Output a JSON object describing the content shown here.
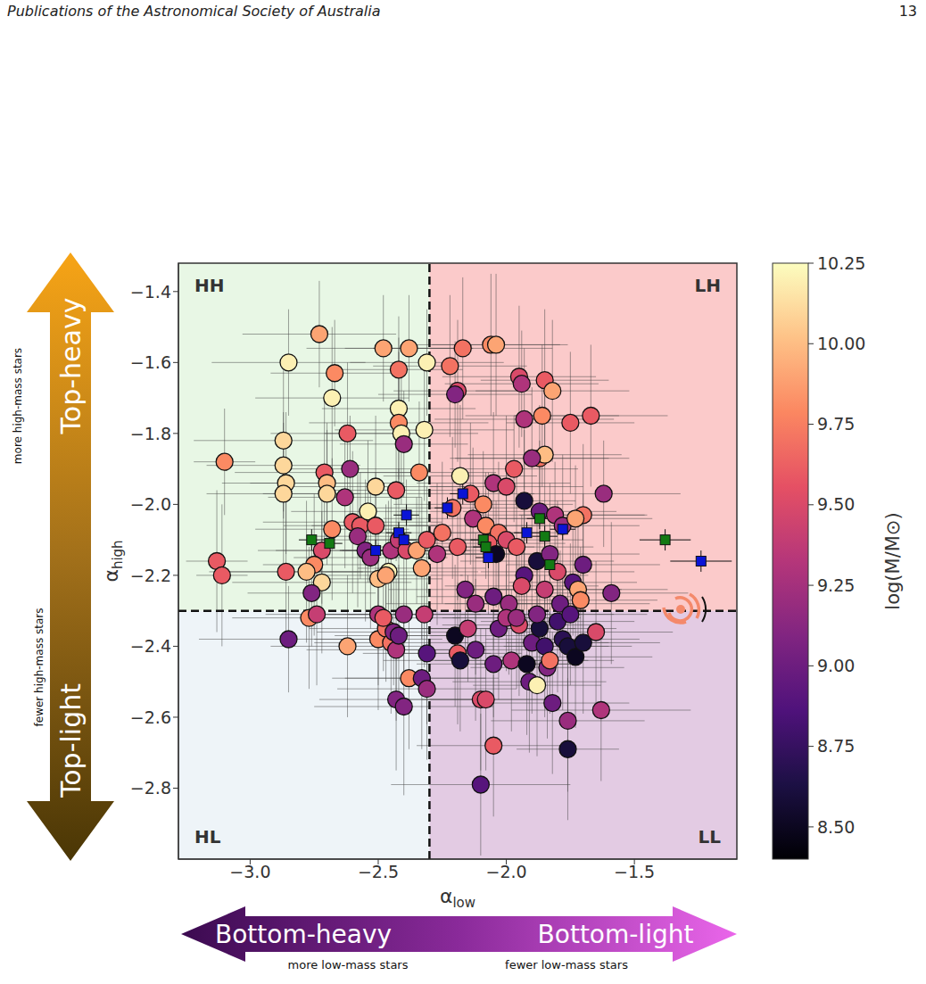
{
  "page": {
    "header": "Publications of the Astronomical Society of Australia",
    "page_number": "13"
  },
  "chart_data": {
    "type": "scatter",
    "xlabel": {
      "text": "α",
      "subscript": "low"
    },
    "ylabel": {
      "text": "α",
      "subscript": "high"
    },
    "xlim": [
      -3.28,
      -1.1
    ],
    "ylim": [
      -3.0,
      -1.32
    ],
    "xticks": [
      {
        "value": -3.0,
        "label": "−3.0"
      },
      {
        "value": -2.5,
        "label": "−2.5"
      },
      {
        "value": -2.0,
        "label": "−2.0"
      },
      {
        "value": -1.5,
        "label": "−1.5"
      }
    ],
    "yticks": [
      {
        "value": -2.8,
        "label": "−2.8"
      },
      {
        "value": -2.6,
        "label": "−2.6"
      },
      {
        "value": -2.4,
        "label": "−2.4"
      },
      {
        "value": -2.2,
        "label": "−2.2"
      },
      {
        "value": -2.0,
        "label": "−2.0"
      },
      {
        "value": -1.8,
        "label": "−1.8"
      },
      {
        "value": -1.6,
        "label": "−1.6"
      },
      {
        "value": -1.4,
        "label": "−1.4"
      }
    ],
    "reference_lines": {
      "x": -2.3,
      "y": -2.3
    },
    "quadrants": [
      {
        "label": "HH",
        "color": "#e8f7e5"
      },
      {
        "label": "LH",
        "color": "#fbcaca"
      },
      {
        "label": "HL",
        "color": "#eef4f8"
      },
      {
        "label": "LL",
        "color": "#e3cbe3"
      }
    ],
    "series": [
      {
        "marker": "circle",
        "x": [
          -3.1,
          -3.13,
          -3.11,
          -2.85,
          -2.87,
          -2.87,
          -2.86,
          -2.87,
          -2.86,
          -2.85,
          -2.73,
          -2.67,
          -2.68,
          -2.71,
          -2.7,
          -2.7,
          -2.68,
          -2.72,
          -2.75,
          -2.78,
          -2.72,
          -2.76,
          -2.77,
          -2.74,
          -2.62,
          -2.61,
          -2.63,
          -2.6,
          -2.57,
          -2.58,
          -2.54,
          -2.51,
          -2.55,
          -2.53,
          -2.5,
          -2.62,
          -2.48,
          -2.42,
          -2.42,
          -2.42,
          -2.41,
          -2.4,
          -2.43,
          -2.51,
          -2.45,
          -2.42,
          -2.39,
          -2.35,
          -2.46,
          -2.47,
          -2.38,
          -2.34,
          -2.32,
          -2.31,
          -2.33,
          -2.31,
          -2.5,
          -2.5,
          -2.47,
          -2.45,
          -2.43,
          -2.44,
          -2.42,
          -2.4,
          -2.43,
          -2.4,
          -2.38,
          -2.32,
          -2.31,
          -2.33,
          -2.31,
          -2.48,
          -2.22,
          -2.19,
          -2.2,
          -2.17,
          -2.06,
          -2.04,
          -1.95,
          -1.94,
          -1.93,
          -1.86,
          -1.85,
          -1.82,
          -1.87,
          -1.85,
          -1.75,
          -1.67,
          -1.62,
          -2.18,
          -2.14,
          -2.09,
          -2.05,
          -2.0,
          -1.97,
          -1.9,
          -1.93,
          -1.87,
          -1.81,
          -1.78,
          -1.7,
          -1.73,
          -2.21,
          -2.13,
          -2.08,
          -2.03,
          -2.0,
          -2.07,
          -2.04,
          -1.96,
          -1.93,
          -1.88,
          -1.83,
          -1.8,
          -1.74,
          -1.7,
          -1.59,
          -1.72,
          -1.71,
          -2.25,
          -2.27,
          -2.19,
          -2.16,
          -2.12,
          -2.05,
          -1.99,
          -1.94,
          -1.85,
          -1.79,
          -2.2,
          -2.19,
          -2.18,
          -2.15,
          -2.12,
          -2.1,
          -2.08,
          -2.05,
          -2.05,
          -2.1,
          -2.03,
          -2.0,
          -1.98,
          -1.95,
          -1.92,
          -1.91,
          -1.88,
          -1.9,
          -1.87,
          -1.85,
          -1.84,
          -1.82,
          -1.83,
          -1.8,
          -1.78,
          -1.76,
          -1.75,
          -1.76,
          -1.76,
          -1.73,
          -1.7,
          -1.65,
          -1.63,
          -1.88,
          -1.96
        ],
        "y": [
          -1.88,
          -2.16,
          -2.2,
          -1.6,
          -1.82,
          -1.89,
          -1.94,
          -1.97,
          -2.19,
          -2.38,
          -1.52,
          -1.63,
          -1.7,
          -1.91,
          -1.94,
          -1.97,
          -2.07,
          -2.13,
          -2.17,
          -2.19,
          -2.22,
          -2.25,
          -2.32,
          -2.31,
          -1.8,
          -1.9,
          -1.98,
          -2.05,
          -2.06,
          -2.09,
          -2.02,
          -2.06,
          -2.13,
          -2.15,
          -2.21,
          -2.4,
          -1.56,
          -1.62,
          -1.73,
          -1.77,
          -1.8,
          -1.83,
          -1.96,
          -1.95,
          -2.13,
          -2.1,
          -2.13,
          -2.13,
          -2.19,
          -2.2,
          -1.56,
          -1.91,
          -1.79,
          -1.6,
          -2.18,
          -2.1,
          -2.31,
          -2.38,
          -2.35,
          -2.39,
          -2.41,
          -2.36,
          -2.37,
          -2.31,
          -2.55,
          -2.57,
          -2.49,
          -2.31,
          -2.42,
          -2.49,
          -2.52,
          -2.32,
          -1.61,
          -1.68,
          -1.69,
          -1.56,
          -1.55,
          -1.55,
          -1.64,
          -1.66,
          -1.76,
          -1.75,
          -1.65,
          -1.68,
          -1.87,
          -1.86,
          -1.77,
          -1.75,
          -1.97,
          -1.92,
          -1.97,
          -2.0,
          -1.94,
          -1.95,
          -1.9,
          -1.87,
          -1.99,
          -2.02,
          -2.03,
          -2.06,
          -2.03,
          -2.04,
          -2.01,
          -2.04,
          -2.06,
          -2.08,
          -2.1,
          -2.11,
          -2.14,
          -2.12,
          -2.2,
          -2.16,
          -2.14,
          -2.19,
          -2.22,
          -2.17,
          -2.25,
          -2.24,
          -2.27,
          -2.08,
          -2.14,
          -2.12,
          -2.24,
          -2.28,
          -2.26,
          -2.28,
          -2.23,
          -2.24,
          -2.28,
          -2.37,
          -2.42,
          -2.44,
          -2.35,
          -2.41,
          -2.55,
          -2.55,
          -2.45,
          -2.68,
          -2.79,
          -2.35,
          -2.32,
          -2.44,
          -2.34,
          -2.45,
          -2.5,
          -2.51,
          -2.39,
          -2.35,
          -2.4,
          -2.46,
          -2.56,
          -2.44,
          -2.33,
          -2.38,
          -2.4,
          -2.31,
          -2.61,
          -2.69,
          -2.43,
          -2.39,
          -2.36,
          -2.58,
          -2.31,
          -2.32
        ],
        "mass": [
          9.8,
          9.6,
          9.6,
          10.2,
          10.1,
          10.1,
          10.1,
          10.1,
          9.6,
          9.0,
          9.9,
          9.8,
          10.2,
          9.6,
          10.0,
          10.1,
          9.8,
          9.5,
          9.8,
          10.0,
          10.1,
          9.1,
          9.8,
          9.4,
          9.6,
          9.2,
          9.3,
          9.6,
          9.6,
          9.2,
          10.2,
          9.6,
          9.1,
          9.2,
          10.0,
          9.9,
          9.9,
          9.7,
          10.2,
          9.8,
          10.2,
          9.2,
          9.6,
          10.1,
          9.3,
          9.4,
          9.5,
          9.9,
          10.2,
          9.9,
          9.9,
          9.8,
          10.2,
          10.2,
          9.9,
          9.6,
          9.3,
          9.8,
          9.7,
          9.7,
          9.3,
          9.1,
          9.0,
          9.2,
          9.1,
          9.1,
          9.8,
          9.4,
          8.9,
          9.0,
          9.2,
          9.6,
          9.7,
          9.5,
          9.1,
          9.7,
          9.8,
          9.9,
          9.5,
          9.3,
          9.3,
          9.8,
          9.6,
          9.9,
          9.7,
          10.0,
          9.6,
          9.6,
          9.2,
          10.2,
          9.6,
          9.8,
          9.3,
          9.5,
          9.6,
          9.2,
          8.6,
          9.0,
          9.3,
          9.2,
          9.7,
          9.9,
          9.7,
          9.3,
          9.8,
          9.7,
          9.5,
          9.6,
          8.5,
          9.6,
          8.9,
          8.6,
          9.1,
          9.5,
          8.9,
          9.0,
          9.1,
          9.9,
          9.8,
          9.7,
          9.3,
          9.6,
          9.1,
          9.2,
          9.0,
          9.2,
          9.5,
          9.4,
          9.0,
          8.5,
          9.6,
          8.6,
          9.4,
          9.0,
          9.5,
          9.5,
          9.0,
          9.6,
          8.9,
          9.0,
          9.3,
          9.3,
          9.5,
          8.5,
          9.0,
          10.2,
          9.0,
          8.6,
          8.8,
          9.1,
          9.0,
          9.7,
          8.8,
          8.7,
          8.6,
          8.9,
          9.2,
          8.6,
          8.5,
          8.6,
          9.5,
          9.3,
          9.1,
          9.2
        ],
        "xerr": [
          0.12,
          0.12,
          0.1,
          0.3,
          0.35,
          0.3,
          0.25,
          0.3,
          0.3,
          0.35,
          0.3,
          0.25,
          0.3,
          0.35,
          0.3,
          0.25,
          0.3,
          0.25,
          0.2,
          0.3,
          0.35,
          0.25,
          0.3,
          0.2,
          0.3,
          0.25,
          0.3,
          0.35,
          0.3,
          0.2,
          0.3,
          0.25,
          0.35,
          0.3,
          0.25,
          0.3,
          0.3,
          0.25,
          0.3,
          0.35,
          0.3,
          0.25,
          0.3,
          0.35,
          0.2,
          0.3,
          0.25,
          0.3,
          0.35,
          0.3,
          0.25,
          0.3,
          0.35,
          0.3,
          0.25,
          0.3,
          0.3,
          0.25,
          0.3,
          0.3,
          0.35,
          0.3,
          0.25,
          0.3,
          0.3,
          0.35,
          0.3,
          0.3,
          0.25,
          0.3,
          0.35,
          0.3,
          0.3,
          0.25,
          0.3,
          0.35,
          0.3,
          0.25,
          0.3,
          0.3,
          0.35,
          0.3,
          0.25,
          0.3,
          0.35,
          0.3,
          0.25,
          0.3,
          0.3,
          0.3,
          0.25,
          0.35,
          0.3,
          0.3,
          0.25,
          0.3,
          0.2,
          0.3,
          0.35,
          0.3,
          0.25,
          0.3,
          0.3,
          0.35,
          0.3,
          0.25,
          0.3,
          0.3,
          0.2,
          0.3,
          0.25,
          0.3,
          0.35,
          0.3,
          0.25,
          0.3,
          0.3,
          0.35,
          0.3,
          0.3,
          0.25,
          0.3,
          0.3,
          0.35,
          0.3,
          0.25,
          0.3,
          0.3,
          0.35,
          0.3,
          0.25,
          0.3,
          0.3,
          0.35,
          0.3,
          0.25,
          0.3,
          0.3,
          0.35,
          0.3,
          0.25,
          0.3,
          0.3,
          0.2,
          0.3,
          0.25,
          0.3,
          0.3,
          0.25,
          0.3,
          0.3,
          0.25,
          0.3,
          0.3,
          0.25,
          0.3,
          0.3,
          0.2,
          0.3,
          0.3,
          0.3,
          0.35,
          0.3,
          0.25
        ],
        "yerr": [
          0.15,
          0.2,
          0.2,
          0.15,
          0.2,
          0.15,
          0.2,
          0.2,
          0.2,
          0.15,
          0.15,
          0.15,
          0.2,
          0.2,
          0.15,
          0.2,
          0.2,
          0.15,
          0.2,
          0.2,
          0.2,
          0.15,
          0.2,
          0.2,
          0.2,
          0.15,
          0.2,
          0.2,
          0.15,
          0.2,
          0.2,
          0.15,
          0.2,
          0.2,
          0.15,
          0.2,
          0.15,
          0.15,
          0.2,
          0.2,
          0.2,
          0.15,
          0.2,
          0.2,
          0.15,
          0.2,
          0.2,
          0.15,
          0.2,
          0.2,
          0.15,
          0.2,
          0.2,
          0.15,
          0.2,
          0.15,
          0.2,
          0.2,
          0.15,
          0.2,
          0.2,
          0.15,
          0.2,
          0.2,
          0.2,
          0.25,
          0.2,
          0.15,
          0.2,
          0.2,
          0.2,
          0.15,
          0.2,
          0.2,
          0.15,
          0.2,
          0.2,
          0.2,
          0.2,
          0.15,
          0.2,
          0.2,
          0.2,
          0.2,
          0.15,
          0.2,
          0.2,
          0.2,
          0.15,
          0.2,
          0.2,
          0.15,
          0.2,
          0.2,
          0.15,
          0.2,
          0.2,
          0.2,
          0.15,
          0.2,
          0.2,
          0.15,
          0.2,
          0.2,
          0.15,
          0.2,
          0.2,
          0.2,
          0.15,
          0.2,
          0.2,
          0.15,
          0.2,
          0.2,
          0.15,
          0.2,
          0.2,
          0.2,
          0.15,
          0.2,
          0.2,
          0.15,
          0.2,
          0.2,
          0.15,
          0.2,
          0.2,
          0.2,
          0.15,
          0.2,
          0.2,
          0.2,
          0.15,
          0.2,
          0.2,
          0.2,
          0.15,
          0.2,
          0.2,
          0.2,
          0.15,
          0.2,
          0.2,
          0.2,
          0.2,
          0.2,
          0.2,
          0.15,
          0.2,
          0.2,
          0.2,
          0.15,
          0.2,
          0.2,
          0.2,
          0.2,
          0.2,
          0.2,
          0.2,
          0.2,
          0.2,
          0.2,
          0.15,
          0.2
        ]
      },
      {
        "marker": "square",
        "color": "#137a13",
        "x": [
          -2.76,
          -2.69,
          -2.09,
          -1.87,
          -1.85,
          -1.83,
          -1.38,
          -2.08
        ],
        "y": [
          -2.1,
          -2.11,
          -2.1,
          -2.04,
          -2.09,
          -2.17,
          -2.1,
          -2.12
        ],
        "xerr": [
          0.05,
          0.05,
          0.05,
          0.05,
          0.05,
          0.05,
          0.1,
          0.05
        ],
        "yerr": [
          0.03,
          0.03,
          0.03,
          0.03,
          0.03,
          0.03,
          0.03,
          0.03
        ]
      },
      {
        "marker": "square",
        "color": "#0a14d6",
        "x": [
          -2.51,
          -2.42,
          -2.39,
          -2.23,
          -2.17,
          -2.07,
          -1.92,
          -1.78,
          -1.24,
          -2.4
        ],
        "y": [
          -2.13,
          -2.08,
          -2.03,
          -2.01,
          -1.97,
          -2.15,
          -2.08,
          -2.07,
          -2.16,
          -2.1
        ],
        "xerr": [
          0.05,
          0.05,
          0.05,
          0.05,
          0.05,
          0.05,
          0.05,
          0.05,
          0.12,
          0.05
        ],
        "yerr": [
          0.03,
          0.03,
          0.03,
          0.03,
          0.03,
          0.03,
          0.03,
          0.03,
          0.03,
          0.03
        ]
      }
    ],
    "colorbar": {
      "label": "log(M/M⊙)",
      "range": [
        8.4,
        10.25
      ],
      "ticks": [
        {
          "value": 8.5,
          "label": "8.50"
        },
        {
          "value": 8.75,
          "label": "8.75"
        },
        {
          "value": 9.0,
          "label": "9.00"
        },
        {
          "value": 9.25,
          "label": "9.25"
        },
        {
          "value": 9.5,
          "label": "9.50"
        },
        {
          "value": 9.75,
          "label": "9.75"
        },
        {
          "value": 10.0,
          "label": "10.00"
        },
        {
          "value": 10.25,
          "label": "10.25"
        }
      ]
    },
    "annotations": {
      "y_arrow": {
        "up": "Top-heavy",
        "up_note": "more high-mass stars",
        "down": "Top-light",
        "down_note": "fewer high-mass stars"
      },
      "x_arrow": {
        "left": "Bottom-heavy",
        "left_note": "more low-mass stars",
        "right": "Bottom-light",
        "right_note": "fewer low-mass stars"
      }
    }
  }
}
